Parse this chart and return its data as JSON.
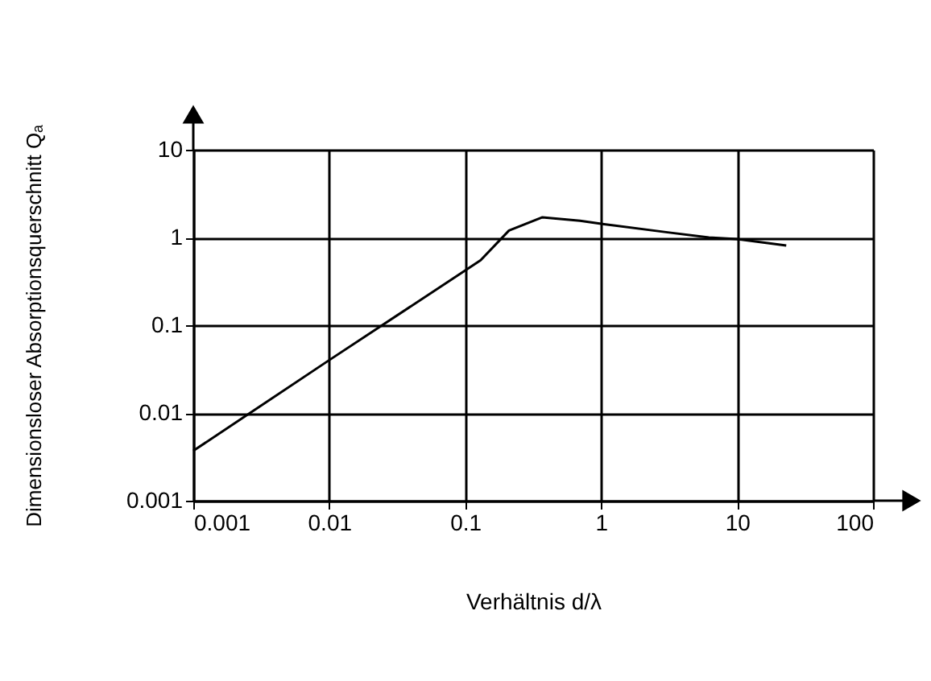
{
  "chart_data": {
    "type": "line",
    "xlabel": "Verhältnis d/λ",
    "ylabel": "Dimensionsloser Absorptionsquerschnitt Qₐ",
    "log": "xy",
    "grid": true,
    "xlim": [
      0.001,
      100
    ],
    "ylim": [
      0.001,
      10
    ],
    "xticks": [
      0.001,
      0.01,
      0.1,
      1,
      10,
      100
    ],
    "yticks": [
      0.001,
      0.01,
      0.1,
      1,
      10
    ],
    "x": [
      0.001,
      0.01,
      0.1,
      0.13,
      0.21,
      0.37,
      0.7,
      1.05,
      3,
      6.2,
      10,
      23
    ],
    "series": [
      {
        "color": "#000000",
        "values": [
          0.0037,
          0.04,
          0.42,
          0.55,
          1.2,
          1.7,
          1.55,
          1.42,
          1.15,
          1.0,
          0.96,
          0.81
        ]
      }
    ]
  }
}
